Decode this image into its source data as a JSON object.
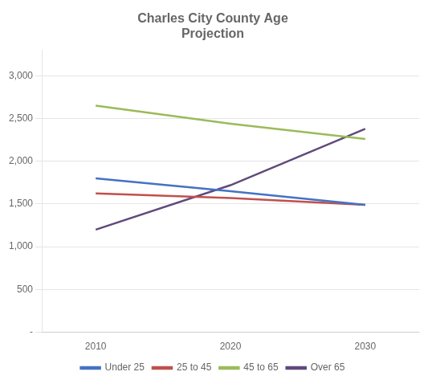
{
  "chart_data": {
    "type": "line",
    "title": "Charles City County Age\nProjection",
    "x": [
      2010,
      2020,
      2030
    ],
    "series": [
      {
        "name": "Under 25",
        "color": "#4472C4",
        "values": [
          1800,
          1650,
          1490
        ]
      },
      {
        "name": "25 to 45",
        "color": "#C0504D",
        "values": [
          1625,
          1570,
          1490
        ]
      },
      {
        "name": "45 to 65",
        "color": "#9BBB59",
        "values": [
          2650,
          2440,
          2260
        ]
      },
      {
        "name": "Over 65",
        "color": "#604A7B",
        "values": [
          1200,
          1720,
          2380
        ]
      }
    ],
    "xlim": [
      2006,
      2034
    ],
    "xticks": [
      2010,
      2020,
      2030
    ],
    "ylim": [
      0,
      3300
    ],
    "yticks": [
      {
        "value": 0,
        "label": "-"
      },
      500,
      {
        "value": 1000,
        "label": "1,000"
      },
      {
        "value": 1500,
        "label": "1,500"
      },
      {
        "value": 2000,
        "label": "2,000"
      },
      {
        "value": 2500,
        "label": "2,500"
      },
      {
        "value": 3000,
        "label": "3,000"
      }
    ],
    "grid": "y",
    "legend": "bottom"
  }
}
